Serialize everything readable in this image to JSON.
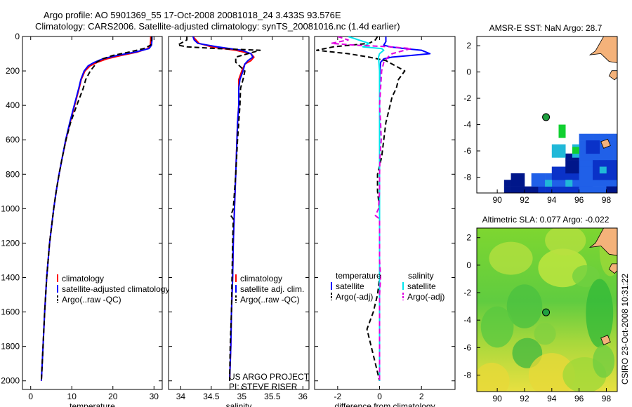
{
  "title_line1": "Argo profile: AO 5901369_55 17-Oct-2008 20081018_24 3.433S 93.576E",
  "title_line2": "Climatology: CARS2006. Satellite-adjusted climatology: synTS_20081016.nc (1.4d earlier)",
  "credit": "CSIRO 23-Oct-2008 10:31:22",
  "colors": {
    "clim": "#ff0000",
    "sat": "#0000ff",
    "argo": "#000000",
    "sat_sal": "#00e5ee",
    "argo_sal": "#e000e0"
  },
  "chart_data": [
    {
      "type": "line",
      "id": "temperature",
      "xlabel": "temperature",
      "xlim": [
        -2,
        32
      ],
      "ylim": [
        0,
        2050
      ],
      "xticks": [
        0,
        10,
        20,
        30
      ],
      "yticks": [
        0,
        200,
        400,
        600,
        800,
        1000,
        1200,
        1400,
        1600,
        1800,
        2000
      ],
      "series": [
        {
          "name": "climatology",
          "color": "#ff0000",
          "dash": "",
          "depth": [
            0,
            20,
            50,
            70,
            90,
            110,
            130,
            150,
            170,
            200,
            250,
            300,
            400,
            500,
            600,
            700,
            800,
            900,
            1000,
            1200,
            1400,
            1600,
            1800,
            2000
          ],
          "values": [
            29.2,
            29.2,
            29.1,
            28.5,
            26,
            22,
            18.5,
            16.2,
            14.5,
            13.2,
            12.3,
            11.8,
            10.7,
            9.6,
            8.6,
            7.7,
            6.9,
            6.2,
            5.6,
            4.6,
            3.9,
            3.4,
            3,
            2.6
          ]
        },
        {
          "name": "satellite-adjusted climatology",
          "color": "#0000ff",
          "dash": "",
          "depth": [
            0,
            20,
            50,
            70,
            90,
            110,
            130,
            150,
            170,
            200,
            250,
            300,
            400,
            500,
            600,
            700,
            800,
            900,
            1000,
            1200,
            1400,
            1600,
            1800,
            2000
          ],
          "values": [
            29.5,
            29.5,
            29.4,
            28.8,
            25.5,
            21,
            17.5,
            15.5,
            14,
            13,
            12.2,
            11.7,
            10.6,
            9.5,
            8.5,
            7.7,
            6.9,
            6.2,
            5.6,
            4.6,
            3.9,
            3.4,
            3,
            2.6
          ]
        },
        {
          "name": "Argo(..raw -QC)",
          "color": "#000000",
          "dash": "7,4",
          "depth": [
            0,
            20,
            50,
            70,
            90,
            110,
            130,
            150,
            170,
            200,
            250,
            300,
            400,
            500,
            600,
            700,
            800,
            900,
            1000,
            1200,
            1400,
            1600,
            1800,
            2000
          ],
          "values": [
            29.4,
            29.4,
            29.2,
            27.5,
            24,
            20,
            17.5,
            16,
            15.5,
            14.5,
            13.4,
            12.8,
            11.2,
            9.7,
            8.6,
            7.7,
            6.9,
            6.2,
            5.6,
            4.6,
            3.9,
            3.4,
            3,
            2.6
          ]
        }
      ],
      "legend": [
        {
          "label": "climatology",
          "color": "#ff0000"
        },
        {
          "label": "satellite-adjusted climatology",
          "color": "#0000ff"
        },
        {
          "label": "Argo(..raw -QC)",
          "color": "#000000"
        }
      ]
    },
    {
      "type": "line",
      "id": "salinity",
      "xlabel": "salinity",
      "xlim": [
        33.8,
        36.1
      ],
      "ylim": [
        0,
        2050
      ],
      "xticks": [
        34,
        34.5,
        35,
        35.5,
        36
      ],
      "xticklabels": [
        "34",
        "34.5",
        "35",
        "35.5",
        "36"
      ],
      "yticks": [
        0,
        200,
        400,
        600,
        800,
        1000,
        1200,
        1400,
        1600,
        1800,
        2000
      ],
      "series": [
        {
          "name": "climatology",
          "color": "#ff0000",
          "dash": "",
          "depth": [
            0,
            20,
            40,
            60,
            80,
            100,
            120,
            140,
            160,
            200,
            250,
            300,
            400,
            500,
            600,
            800,
            1000,
            1200,
            1400,
            1600,
            1800,
            2000
          ],
          "values": [
            34.2,
            34.25,
            34.3,
            34.5,
            34.9,
            35.15,
            35.2,
            35.15,
            35.05,
            35.0,
            34.95,
            34.95,
            34.95,
            34.93,
            34.92,
            34.9,
            34.88,
            34.86,
            34.85,
            34.83,
            34.82,
            34.8
          ]
        },
        {
          "name": "satellite adj. clim.",
          "color": "#0000ff",
          "dash": "",
          "depth": [
            0,
            20,
            40,
            60,
            80,
            100,
            120,
            140,
            160,
            200,
            250,
            300,
            400,
            500,
            600,
            800,
            1000,
            1200,
            1400,
            1600,
            1800,
            2000
          ],
          "values": [
            34.2,
            34.22,
            34.28,
            34.6,
            35.0,
            35.15,
            35.18,
            35.1,
            35.05,
            35.02,
            34.97,
            34.95,
            34.95,
            34.93,
            34.92,
            34.9,
            34.88,
            34.86,
            34.85,
            34.83,
            34.82,
            34.8
          ]
        },
        {
          "name": "Argo(..raw -QC)",
          "color": "#000000",
          "dash": "7,4",
          "depth": [
            0,
            20,
            40,
            50,
            60,
            70,
            80,
            100,
            120,
            150,
            200,
            250,
            300,
            400,
            500,
            600,
            800,
            1000,
            1040,
            1060,
            1200,
            1400,
            1600,
            1800,
            2000
          ],
          "values": [
            34.1,
            34.1,
            34.0,
            33.95,
            34.1,
            34.6,
            35.3,
            35.1,
            34.9,
            34.9,
            35.05,
            35.02,
            34.98,
            34.97,
            34.95,
            34.93,
            34.9,
            34.86,
            34.82,
            34.86,
            34.85,
            34.84,
            34.83,
            34.81,
            34.8
          ]
        }
      ],
      "legend": [
        {
          "label": "climatology",
          "color": "#ff0000"
        },
        {
          "label": "satellite adj. clim.",
          "color": "#0000ff"
        },
        {
          "label": "Argo(..raw -QC)",
          "color": "#000000"
        }
      ],
      "annotations": [
        "US ARGO PROJECT",
        "PI: STEVE RISER"
      ]
    },
    {
      "type": "line",
      "id": "difference",
      "xlabel": "difference from climatology",
      "xlim": [
        -3.1,
        3.6
      ],
      "ylim": [
        0,
        2050
      ],
      "xticks": [
        -2,
        0,
        2
      ],
      "yticks": [
        0,
        200,
        400,
        600,
        800,
        1000,
        1200,
        1400,
        1600,
        1800,
        2000
      ],
      "series": [
        {
          "name": "satellite (temperature)",
          "color": "#0000ff",
          "dash": "",
          "depth": [
            0,
            30,
            50,
            60,
            70,
            80,
            90,
            100,
            110,
            120,
            130,
            150,
            200,
            300,
            500,
            800,
            1000,
            1500,
            2000
          ],
          "values": [
            0.3,
            0.3,
            0.2,
            0.5,
            1.2,
            2.0,
            2.2,
            2.4,
            1.5,
            0.6,
            0.2,
            0.05,
            0.02,
            0,
            0,
            0,
            0,
            0,
            0
          ]
        },
        {
          "name": "Argo(-adj) (temperature)",
          "color": "#000000",
          "dash": "7,4",
          "depth": [
            0,
            20,
            40,
            60,
            80,
            100,
            120,
            140,
            160,
            200,
            250,
            300,
            350,
            400,
            500,
            600,
            700,
            800,
            900,
            1000,
            1100,
            1200,
            1300,
            1400,
            1500,
            1600,
            1700,
            1800,
            1900,
            2000
          ],
          "values": [
            -0.1,
            -0.2,
            -0.5,
            -2.2,
            -3.0,
            -1.5,
            -0.5,
            0.3,
            0.6,
            1.2,
            0.9,
            0.8,
            0.6,
            0.5,
            0.3,
            0.2,
            0.1,
            -0.1,
            -0.1,
            0,
            0,
            0,
            0,
            0,
            -0.1,
            -0.3,
            -0.6,
            -0.4,
            -0.2,
            0
          ]
        },
        {
          "name": "satellite (salinity)",
          "color": "#00e5ee",
          "dash": "",
          "depth": [
            0,
            20,
            40,
            60,
            70,
            80,
            100,
            120,
            200,
            500,
            1000,
            1500,
            2000
          ],
          "values": [
            -1.5,
            -1.0,
            -0.5,
            -0.8,
            0.1,
            0.2,
            0.0,
            -0.05,
            0,
            0,
            0,
            0,
            0
          ]
        },
        {
          "name": "Argo(-adj) (salinity)",
          "color": "#e000e0",
          "dash": "7,4",
          "depth": [
            0,
            20,
            40,
            50,
            60,
            70,
            80,
            100,
            120,
            150,
            200,
            300,
            400,
            500,
            600,
            700,
            800,
            900,
            1000,
            1040,
            1060,
            1100,
            1300,
            1400,
            1500,
            1800,
            2000
          ],
          "values": [
            -2.0,
            -1.5,
            -2.3,
            -1.2,
            0.5,
            1.5,
            1.2,
            0.6,
            0.4,
            0.2,
            0.1,
            0.05,
            0,
            0.05,
            0.08,
            0.02,
            0,
            0,
            -0.05,
            -0.2,
            0,
            0,
            0,
            0.05,
            0,
            0,
            0
          ]
        }
      ],
      "legend_left_title": "temperature",
      "legend_right_title": "salinity",
      "legend": [
        {
          "label": "satellite",
          "color": "#0000ff"
        },
        {
          "label": "Argo(-adj)",
          "color": "#000000"
        },
        {
          "label": "satellite",
          "color": "#00e5ee"
        },
        {
          "label": "Argo(-adj)",
          "color": "#e000e0"
        }
      ]
    },
    {
      "type": "heatmap",
      "id": "sst_map",
      "title": "AMSR-E SST: NaN Argo: 28.7",
      "xlim": [
        88.5,
        98.8
      ],
      "ylim": [
        -9.2,
        2.7
      ],
      "xticks": [
        90,
        92,
        94,
        96,
        98
      ],
      "yticks": [
        -8,
        -6,
        -4,
        -2,
        0,
        2
      ],
      "profile_location": {
        "lon": 93.576,
        "lat": -3.433
      }
    },
    {
      "type": "heatmap",
      "id": "sla_map",
      "title": "Altimetric SLA: 0.077 Argo: -0.022",
      "xlim": [
        88.5,
        98.8
      ],
      "ylim": [
        -9.2,
        2.7
      ],
      "xticks": [
        90,
        92,
        94,
        96,
        98
      ],
      "yticks": [
        -8,
        -6,
        -4,
        -2,
        0,
        2
      ],
      "profile_location": {
        "lon": 93.576,
        "lat": -3.433
      }
    }
  ]
}
